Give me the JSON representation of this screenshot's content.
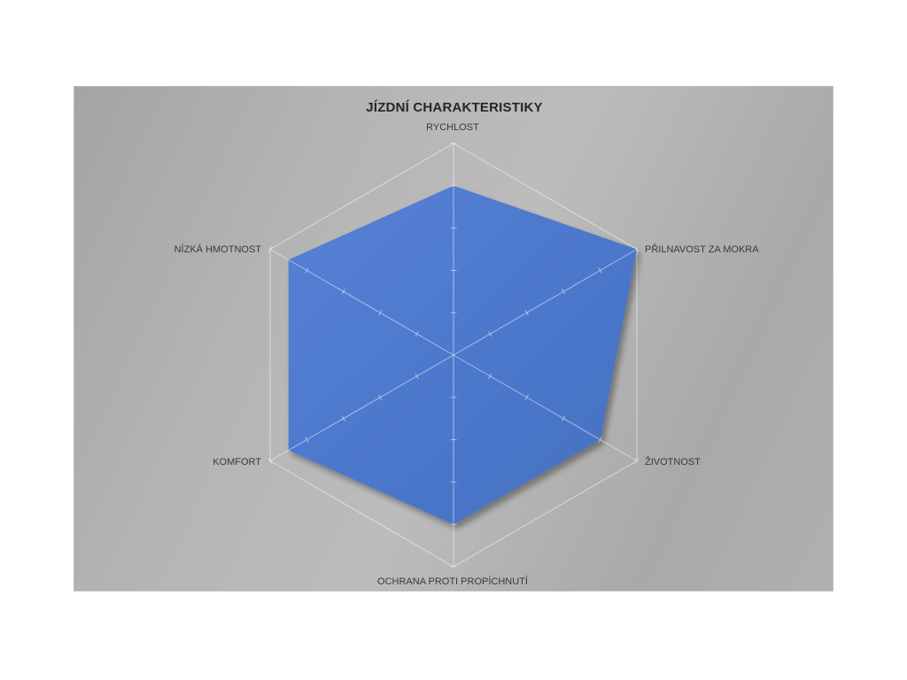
{
  "chart_data": {
    "type": "radar",
    "title": "JÍZDNÍ CHARAKTERISTIKY",
    "categories": [
      "RYCHLOST",
      "PŘILNAVOST ZA MOKRA",
      "ŽIVOTNOST",
      "OCHRANA PROTI PROPÍCHNUTÍ",
      "KOMFORT",
      "NÍZKÁ HMOTNOST"
    ],
    "series": [
      {
        "name": "JÍZDNÍ CHARAKTERISTIKY",
        "values": [
          8,
          10,
          8,
          8,
          9,
          9
        ]
      }
    ],
    "axis_min": 0,
    "axis_max": 10,
    "tick_interval": 2,
    "rings": 5,
    "grid_style": "radial-axes-with-ticks-and-outer-ring",
    "legend": "none",
    "colors": {
      "fill": "#4b76c9",
      "fill_light": "#5681d6",
      "fill_dark": "#4470c2",
      "grid_line": "rgba(255,255,255,0.5)",
      "panel_gray_dark": "#a4a4a4",
      "panel_gray_light": "#bcbcbc",
      "title_text": "#262626",
      "label_text": "#3a3a3a"
    }
  }
}
